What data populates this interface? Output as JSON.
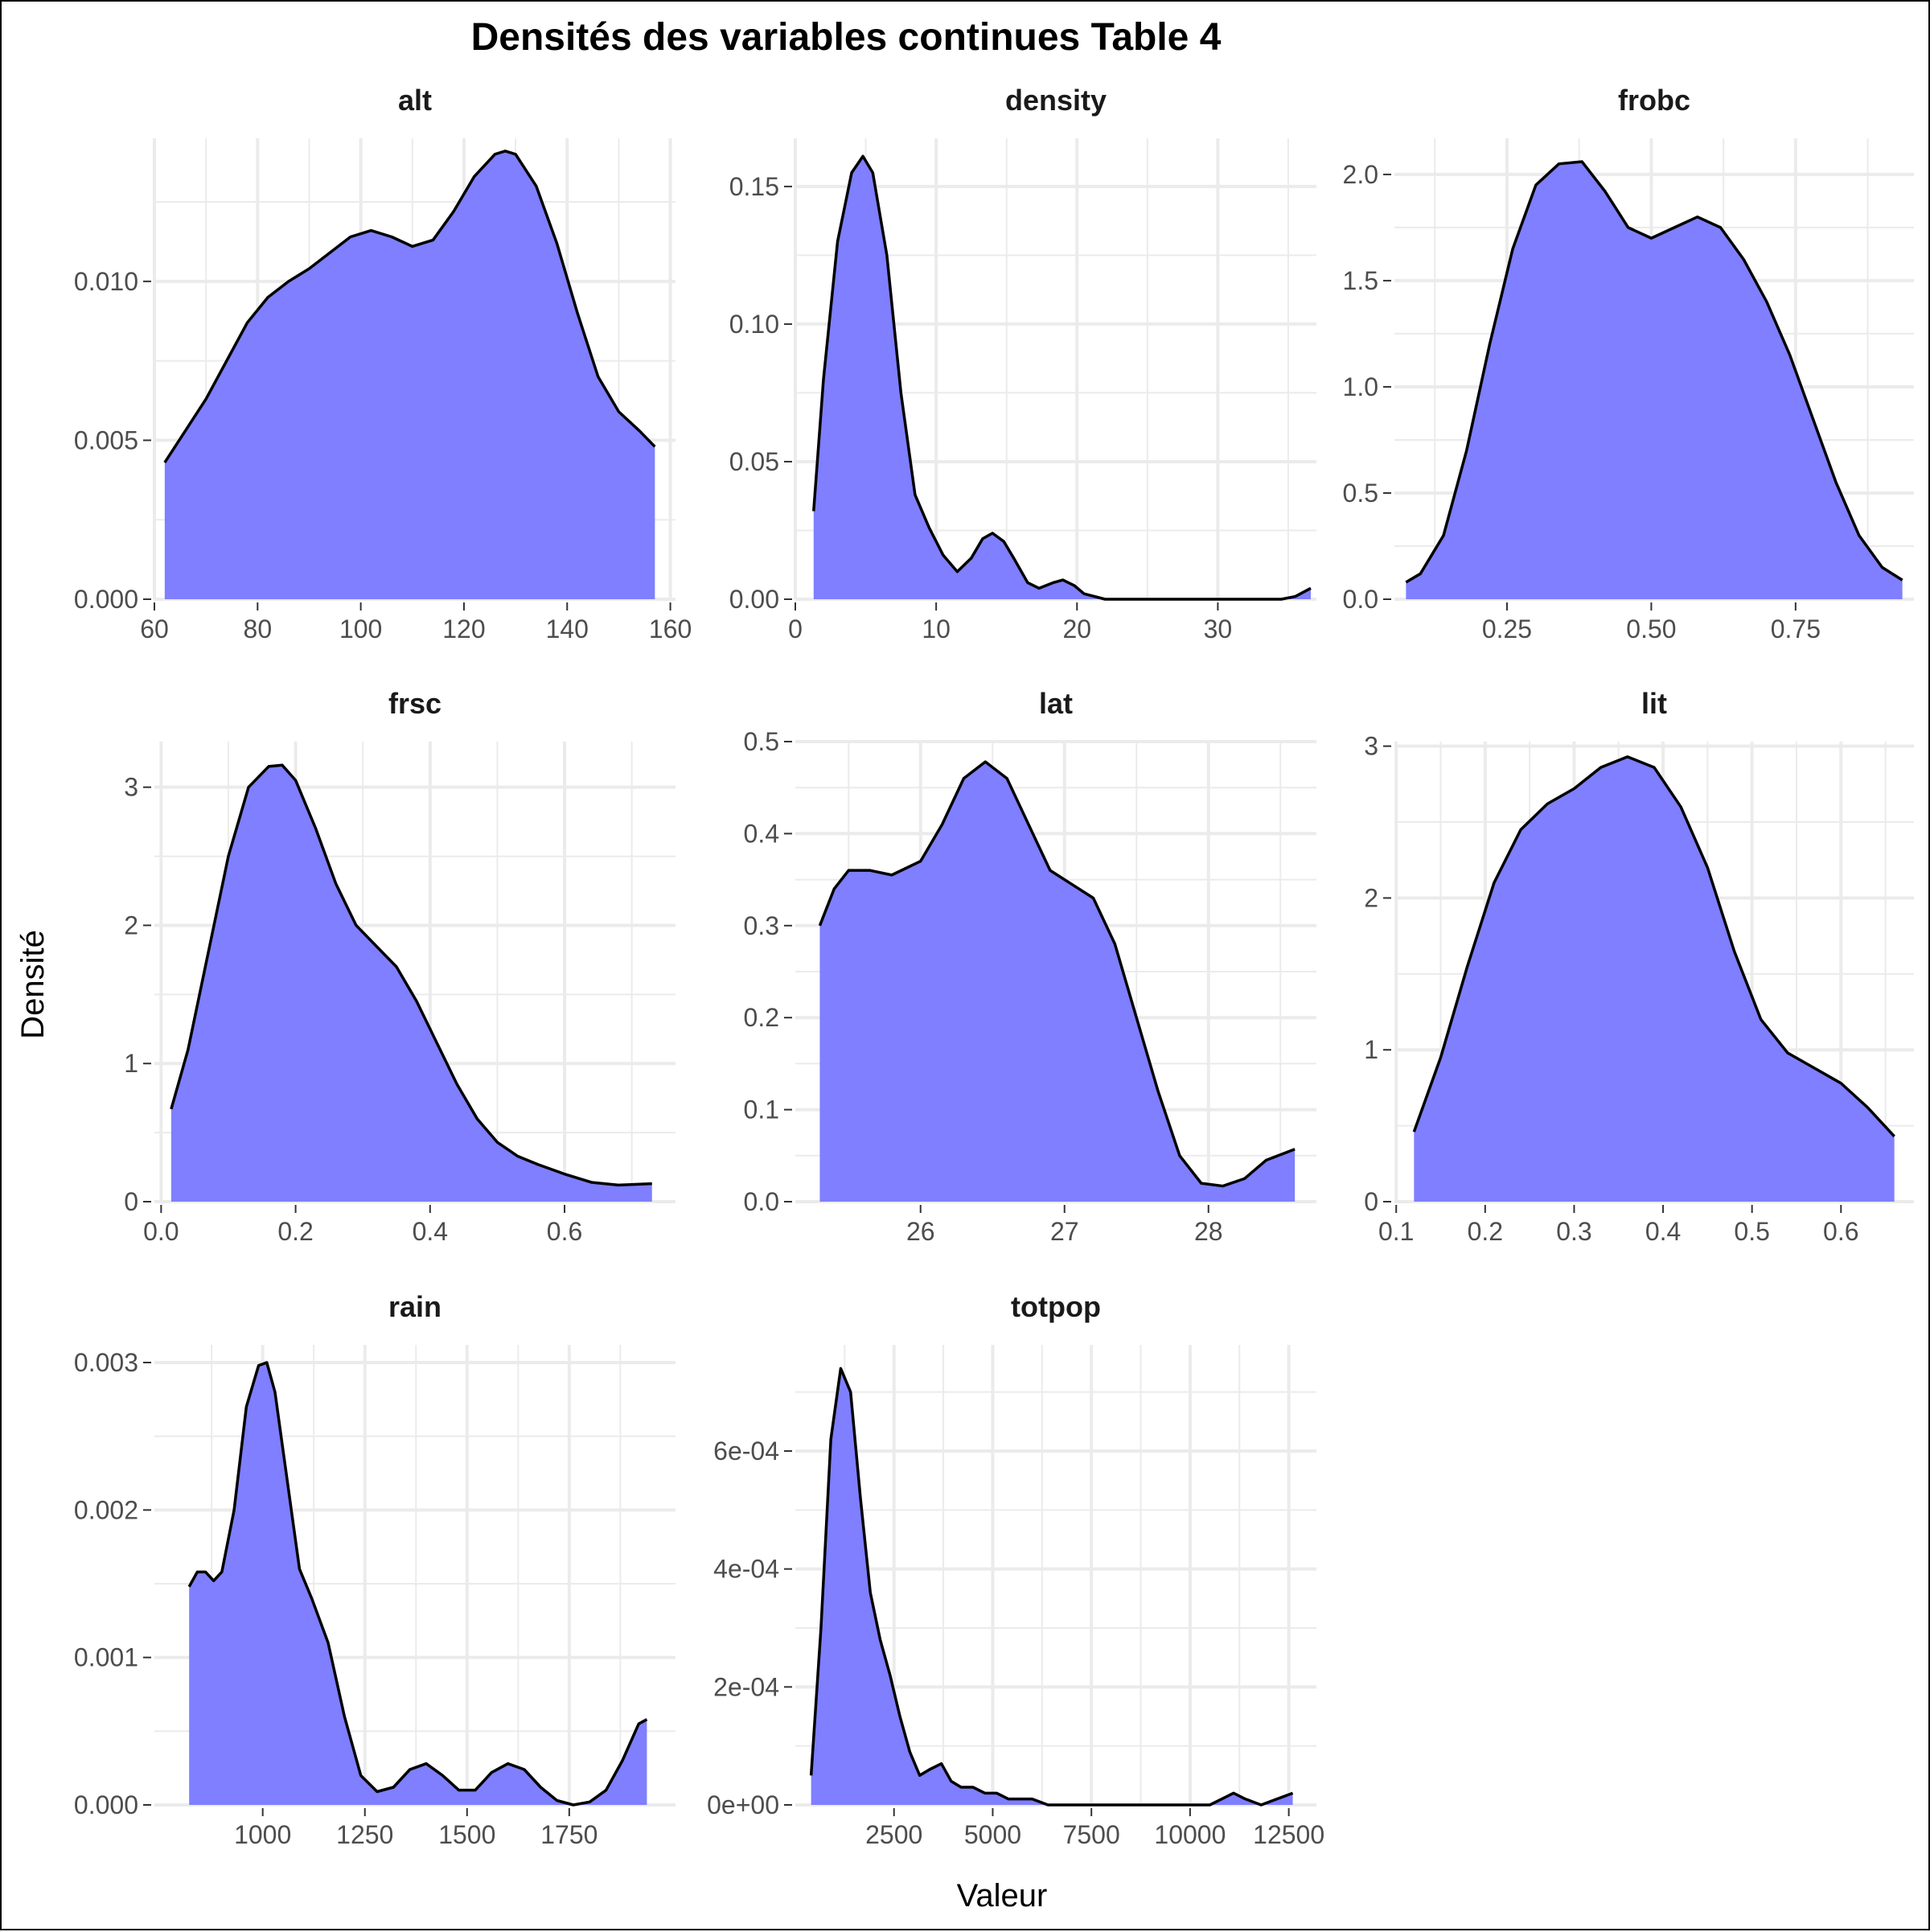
{
  "chart_data": {
    "type": "area",
    "title": "Densités des variables continues Table 4",
    "xlabel": "Valeur",
    "ylabel": "Densité",
    "fill_color": "#7F7FFF",
    "line_color": "#000000",
    "grid": true,
    "panels": [
      {
        "name": "alt",
        "xlim": [
          60,
          161
        ],
        "ylim": [
          0,
          0.0145
        ],
        "x_ticks": [
          60,
          80,
          100,
          120,
          140,
          160
        ],
        "x_tick_labels": [
          "60",
          "80",
          "100",
          "120",
          "140",
          "160"
        ],
        "y_ticks": [
          0,
          0.005,
          0.01
        ],
        "y_tick_labels": [
          "0.000",
          "0.005",
          "0.010"
        ],
        "x": [
          62,
          66,
          70,
          74,
          78,
          82,
          86,
          90,
          94,
          98,
          102,
          106,
          110,
          114,
          118,
          122,
          126,
          128,
          130,
          134,
          138,
          142,
          146,
          150,
          154,
          157
        ],
        "y": [
          0.0043,
          0.0053,
          0.0063,
          0.0075,
          0.0087,
          0.0095,
          0.01,
          0.0104,
          0.0109,
          0.0114,
          0.0116,
          0.0114,
          0.0111,
          0.0113,
          0.0122,
          0.0133,
          0.014,
          0.0141,
          0.014,
          0.013,
          0.0112,
          0.009,
          0.007,
          0.0059,
          0.0053,
          0.0048
        ]
      },
      {
        "name": "density",
        "xlim": [
          0,
          37
        ],
        "ylim": [
          0,
          0.1675
        ],
        "x_ticks": [
          0,
          10,
          20,
          30
        ],
        "x_tick_labels": [
          "0",
          "10",
          "20",
          "30"
        ],
        "y_ticks": [
          0,
          0.05,
          0.1,
          0.15
        ],
        "y_tick_labels": [
          "0.00",
          "0.05",
          "0.10",
          "0.15"
        ],
        "x": [
          1.3,
          2.0,
          3.0,
          4.0,
          4.8,
          5.5,
          6.5,
          7.5,
          8.5,
          9.5,
          10.5,
          11.5,
          12.5,
          13.3,
          14.0,
          14.8,
          15.5,
          16.5,
          17.3,
          18.3,
          19.0,
          19.8,
          20.5,
          22.0,
          25.0,
          30.0,
          34.5,
          35.5,
          36.6
        ],
        "y": [
          0.032,
          0.08,
          0.13,
          0.155,
          0.161,
          0.155,
          0.125,
          0.075,
          0.038,
          0.026,
          0.016,
          0.01,
          0.015,
          0.022,
          0.024,
          0.021,
          0.015,
          0.006,
          0.004,
          0.006,
          0.007,
          0.005,
          0.002,
          0.0,
          0.0,
          0.0,
          0.0,
          0.001,
          0.004
        ]
      },
      {
        "name": "frobc",
        "xlim": [
          0.055,
          0.955
        ],
        "ylim": [
          0,
          2.17
        ],
        "x_ticks": [
          0.25,
          0.5,
          0.75
        ],
        "x_tick_labels": [
          "0.25",
          "0.50",
          "0.75"
        ],
        "y_ticks": [
          0,
          0.5,
          1.0,
          1.5,
          2.0
        ],
        "y_tick_labels": [
          "0.0",
          "0.5",
          "1.0",
          "1.5",
          "2.0"
        ],
        "x": [
          0.075,
          0.1,
          0.14,
          0.18,
          0.22,
          0.26,
          0.3,
          0.34,
          0.38,
          0.42,
          0.46,
          0.5,
          0.54,
          0.58,
          0.62,
          0.66,
          0.7,
          0.74,
          0.78,
          0.82,
          0.86,
          0.9,
          0.935
        ],
        "y": [
          0.08,
          0.12,
          0.3,
          0.7,
          1.2,
          1.65,
          1.95,
          2.05,
          2.06,
          1.92,
          1.75,
          1.7,
          1.75,
          1.8,
          1.75,
          1.6,
          1.4,
          1.15,
          0.85,
          0.55,
          0.3,
          0.15,
          0.09
        ]
      },
      {
        "name": "frsc",
        "xlim": [
          -0.01,
          0.765
        ],
        "ylim": [
          0,
          3.33
        ],
        "x_ticks": [
          0.0,
          0.2,
          0.4,
          0.6
        ],
        "x_tick_labels": [
          "0.0",
          "0.2",
          "0.4",
          "0.6"
        ],
        "y_ticks": [
          0,
          1,
          2,
          3
        ],
        "y_tick_labels": [
          "0",
          "1",
          "2",
          "3"
        ],
        "x": [
          0.015,
          0.04,
          0.07,
          0.1,
          0.13,
          0.16,
          0.18,
          0.2,
          0.23,
          0.26,
          0.29,
          0.32,
          0.35,
          0.38,
          0.41,
          0.44,
          0.47,
          0.5,
          0.53,
          0.56,
          0.6,
          0.64,
          0.68,
          0.73
        ],
        "y": [
          0.67,
          1.1,
          1.8,
          2.5,
          3.0,
          3.15,
          3.16,
          3.05,
          2.7,
          2.3,
          2.0,
          1.85,
          1.7,
          1.45,
          1.15,
          0.85,
          0.6,
          0.43,
          0.33,
          0.27,
          0.2,
          0.14,
          0.12,
          0.13
        ]
      },
      {
        "name": "lat",
        "xlim": [
          25.13,
          28.75
        ],
        "ylim": [
          0,
          0.5
        ],
        "x_ticks": [
          26,
          27,
          28
        ],
        "x_tick_labels": [
          "26",
          "27",
          "28"
        ],
        "y_ticks": [
          0,
          0.1,
          0.2,
          0.3,
          0.4,
          0.5
        ],
        "y_tick_labels": [
          "0.0",
          "0.1",
          "0.2",
          "0.3",
          "0.4",
          "0.5"
        ],
        "x": [
          25.3,
          25.4,
          25.5,
          25.65,
          25.8,
          26.0,
          26.15,
          26.3,
          26.45,
          26.6,
          26.75,
          26.9,
          27.05,
          27.2,
          27.35,
          27.5,
          27.65,
          27.8,
          27.95,
          28.1,
          28.25,
          28.4,
          28.6
        ],
        "y": [
          0.3,
          0.34,
          0.36,
          0.36,
          0.355,
          0.37,
          0.41,
          0.46,
          0.478,
          0.46,
          0.41,
          0.36,
          0.345,
          0.33,
          0.28,
          0.2,
          0.12,
          0.05,
          0.02,
          0.017,
          0.025,
          0.045,
          0.057
        ]
      },
      {
        "name": "lit",
        "xlim": [
          0.098,
          0.682
        ],
        "ylim": [
          0,
          3.03
        ],
        "x_ticks": [
          0.1,
          0.2,
          0.3,
          0.4,
          0.5,
          0.6
        ],
        "x_tick_labels": [
          "0.1",
          "0.2",
          "0.3",
          "0.4",
          "0.5",
          "0.6"
        ],
        "y_ticks": [
          0,
          1,
          2,
          3
        ],
        "y_tick_labels": [
          "0",
          "1",
          "2",
          "3"
        ],
        "x": [
          0.12,
          0.15,
          0.18,
          0.21,
          0.24,
          0.27,
          0.3,
          0.33,
          0.36,
          0.39,
          0.42,
          0.45,
          0.48,
          0.51,
          0.54,
          0.57,
          0.6,
          0.63,
          0.66
        ],
        "y": [
          0.46,
          0.95,
          1.55,
          2.1,
          2.45,
          2.62,
          2.72,
          2.86,
          2.93,
          2.86,
          2.6,
          2.2,
          1.65,
          1.2,
          0.98,
          0.88,
          0.78,
          0.62,
          0.43
        ]
      },
      {
        "name": "rain",
        "xlim": [
          735,
          2010
        ],
        "ylim": [
          0,
          0.00312
        ],
        "x_ticks": [
          1000,
          1250,
          1500,
          1750
        ],
        "x_tick_labels": [
          "1000",
          "1250",
          "1500",
          "1750"
        ],
        "y_ticks": [
          0,
          0.001,
          0.002,
          0.003
        ],
        "y_tick_labels": [
          "0.000",
          "0.001",
          "0.002",
          "0.003"
        ],
        "x": [
          820,
          840,
          860,
          880,
          900,
          930,
          960,
          990,
          1010,
          1030,
          1060,
          1090,
          1120,
          1160,
          1200,
          1240,
          1280,
          1320,
          1360,
          1400,
          1440,
          1480,
          1520,
          1560,
          1600,
          1640,
          1680,
          1720,
          1760,
          1800,
          1840,
          1880,
          1920,
          1940
        ],
        "y": [
          0.00148,
          0.00158,
          0.00158,
          0.00152,
          0.00158,
          0.002,
          0.0027,
          0.00298,
          0.003,
          0.0028,
          0.0022,
          0.0016,
          0.0014,
          0.0011,
          0.0006,
          0.0002,
          9e-05,
          0.00012,
          0.00024,
          0.00028,
          0.0002,
          0.0001,
          0.0001,
          0.00022,
          0.00028,
          0.00024,
          0.00012,
          3e-05,
          0.0,
          2e-05,
          0.0001,
          0.0003,
          0.00055,
          0.00058
        ]
      },
      {
        "name": "totpop",
        "xlim": [
          0,
          13200
        ],
        "ylim": [
          0,
          0.00078
        ],
        "x_ticks": [
          2500,
          5000,
          7500,
          10000,
          12500
        ],
        "x_tick_labels": [
          "2500",
          "5000",
          "7500",
          "10000",
          "12500"
        ],
        "y_ticks": [
          0,
          0.0002,
          0.0004,
          0.0006
        ],
        "y_tick_labels": [
          "0e+00",
          "2e-04",
          "4e-04",
          "6e-04"
        ],
        "x": [
          400,
          650,
          900,
          1150,
          1400,
          1650,
          1900,
          2150,
          2400,
          2650,
          2900,
          3150,
          3400,
          3700,
          3950,
          4200,
          4500,
          4800,
          5100,
          5400,
          5700,
          6000,
          6400,
          7000,
          8000,
          9000,
          10000,
          10500,
          10800,
          11100,
          11400,
          11800,
          12200,
          12600
        ],
        "y": [
          5e-05,
          0.0003,
          0.00062,
          0.00074,
          0.0007,
          0.00052,
          0.00036,
          0.00028,
          0.00022,
          0.00015,
          9e-05,
          5e-05,
          6e-05,
          7e-05,
          4e-05,
          3e-05,
          3e-05,
          2e-05,
          2e-05,
          1e-05,
          1e-05,
          1e-05,
          0.0,
          0.0,
          0.0,
          0.0,
          0.0,
          0.0,
          1e-05,
          2e-05,
          1e-05,
          0.0,
          1e-05,
          2e-05
        ]
      }
    ]
  }
}
